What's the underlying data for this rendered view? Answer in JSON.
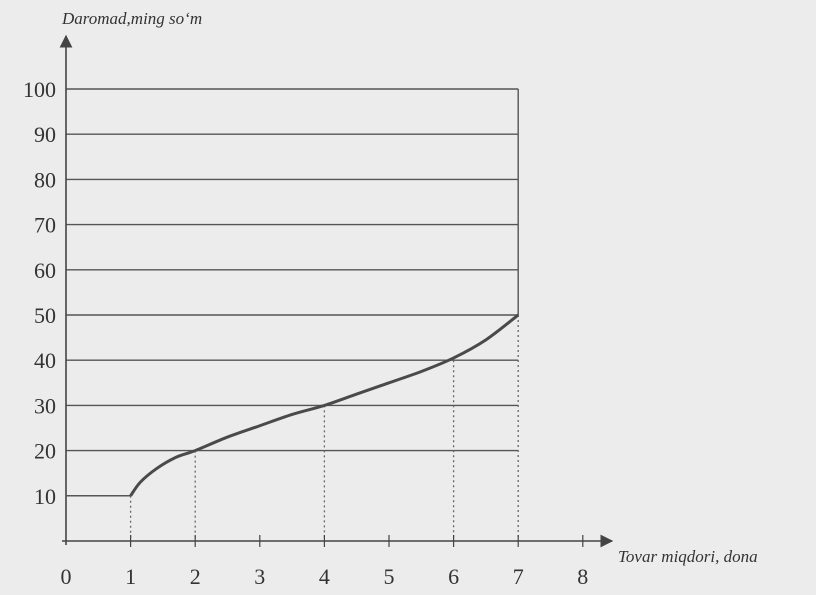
{
  "chart_data": {
    "type": "line",
    "ylabel": "Daromad,ming so‘m",
    "xlabel": "Tovar miqdori, dona",
    "xlim": [
      0,
      8
    ],
    "ylim": [
      0,
      100
    ],
    "x_ticks": [
      0,
      1,
      2,
      3,
      4,
      5,
      6,
      7,
      8
    ],
    "y_ticks": [
      10,
      20,
      30,
      40,
      50,
      60,
      70,
      80,
      90,
      100
    ],
    "horizontal_gridlines": [
      20,
      30,
      40,
      50,
      60,
      70,
      80,
      90,
      100
    ],
    "grid_right_x": 7,
    "step_segment": {
      "x": [
        0,
        1
      ],
      "y": 10
    },
    "series": [
      {
        "x": [
          1,
          1.15,
          1.4,
          1.7,
          2,
          2.5,
          3,
          3.5,
          4,
          4.5,
          5,
          5.5,
          6,
          6.5,
          7
        ],
        "y": [
          10,
          13,
          16,
          18.5,
          20,
          23,
          25.5,
          28,
          30,
          32.5,
          35,
          37.5,
          40.5,
          44.5,
          50
        ]
      }
    ],
    "dotted_drops": [
      {
        "x": 1,
        "y": 10
      },
      {
        "x": 2,
        "y": 20
      },
      {
        "x": 4,
        "y": 30
      },
      {
        "x": 6,
        "y": 40
      },
      {
        "x": 7,
        "y": 50
      }
    ],
    "colors": {
      "curve": "#4a4a4a",
      "grid": "#555555",
      "axis": "#444444",
      "background": "#ececec"
    }
  }
}
